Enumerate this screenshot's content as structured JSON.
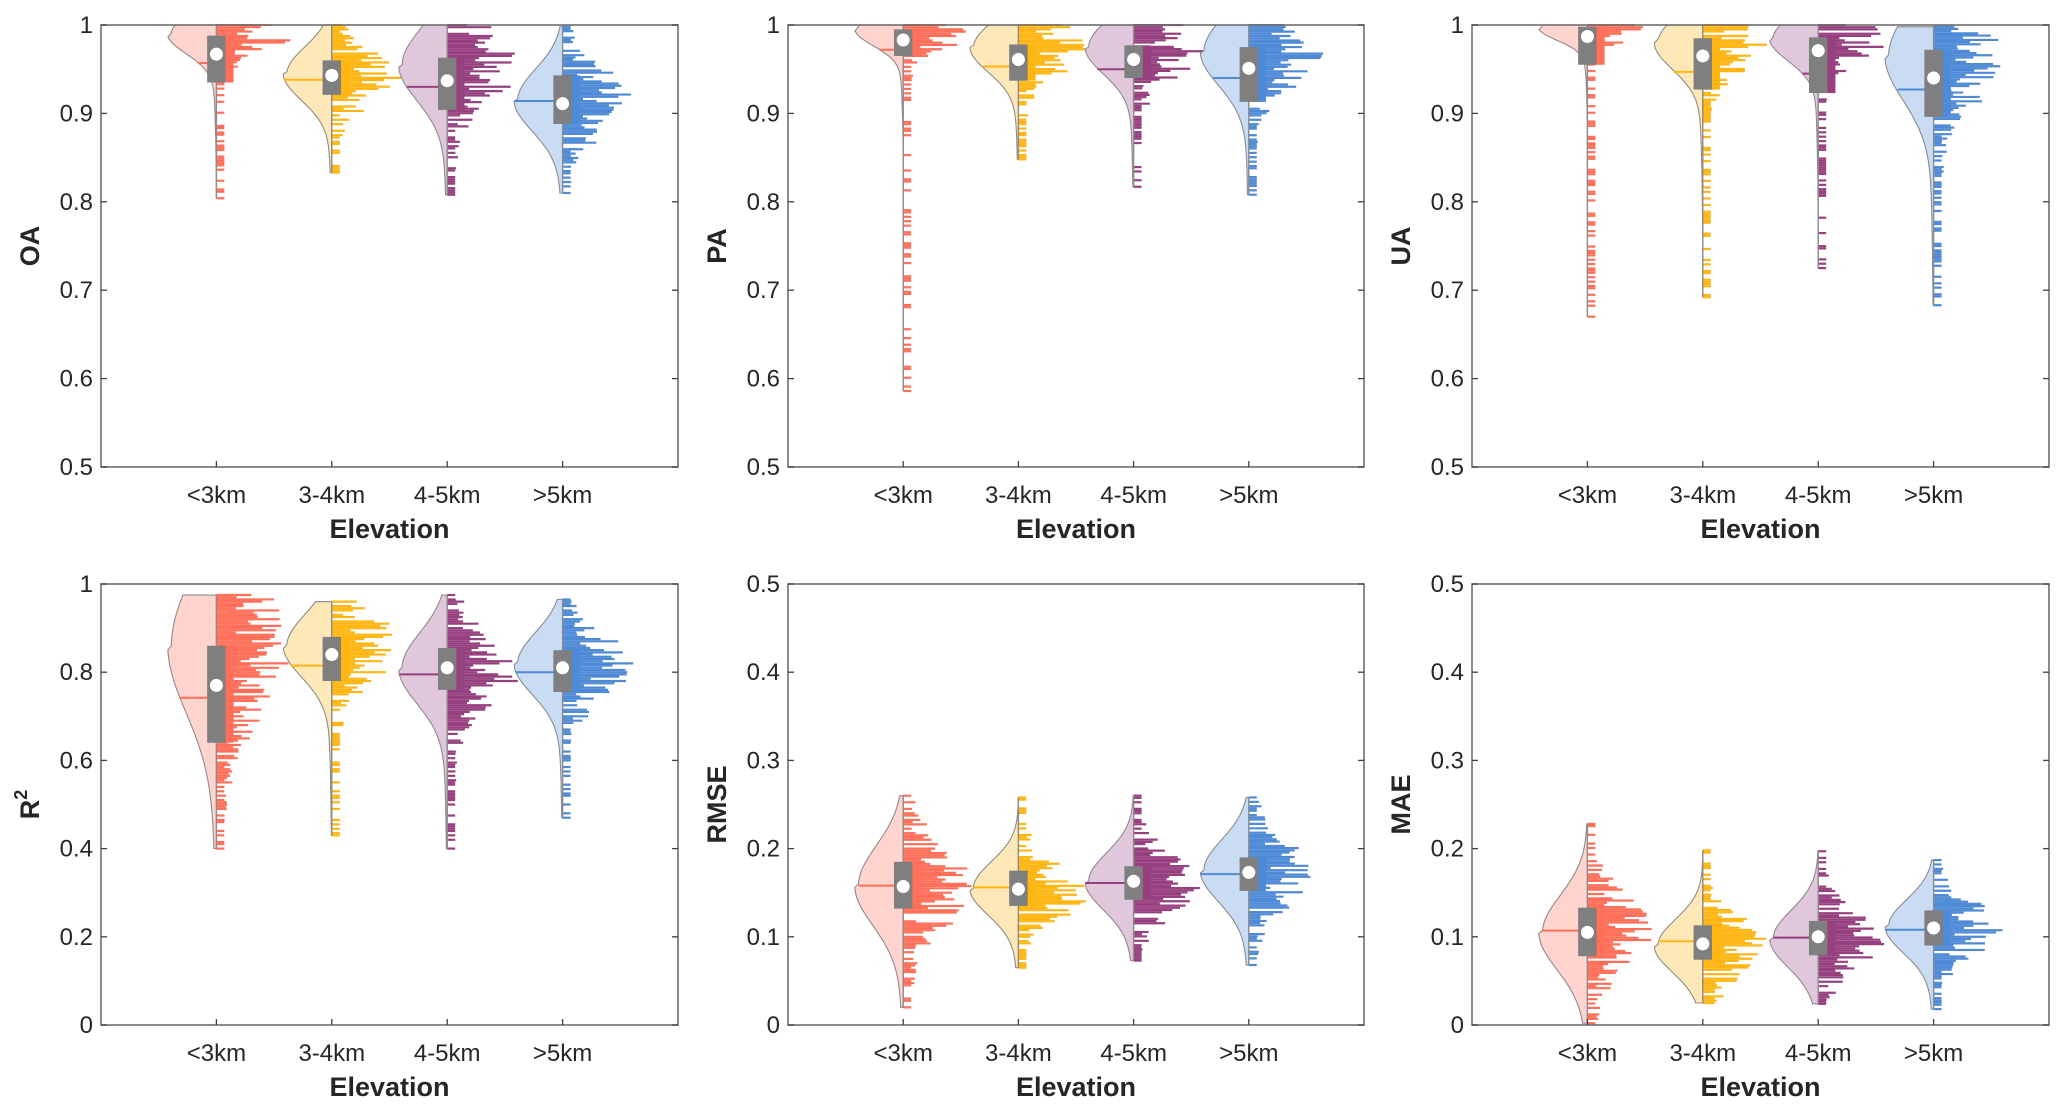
{
  "figure": {
    "x_title": "Elevation",
    "categories": [
      "<3km",
      "3-4km",
      "4-5km",
      ">5km"
    ],
    "colors": {
      "<3km": {
        "line": "#FF6F59",
        "fill": "#FFD3CE"
      },
      "3-4km": {
        "line": "#FFB612",
        "fill": "#FFE8B8"
      },
      "4-5km": {
        "line": "#974080",
        "fill": "#E1C7DC"
      },
      ">5km": {
        "line": "#4E8AD6",
        "fill": "#C9DCF4"
      }
    },
    "box_color": "#7F7F7F",
    "mean_marker_color": "#FFFFFF"
  },
  "chart_data": [
    {
      "type": "raincloud",
      "title": "",
      "ylabel": "OA",
      "xlabel": "Elevation",
      "ylim": [
        0.5,
        1
      ],
      "yticks": [
        "0.5",
        "0.6",
        "0.7",
        "0.8",
        "0.9",
        "1"
      ],
      "ytick_values": [
        0.5,
        0.6,
        0.7,
        0.8,
        0.9,
        1.0
      ],
      "categories": [
        "<3km",
        "3-4km",
        "4-5km",
        ">5km"
      ],
      "series": [
        {
          "name": "<3km",
          "min": 0.804,
          "max": 1.0,
          "q1": 0.935,
          "q3": 0.988,
          "median": 0.957,
          "mean": 0.967,
          "mode": 0.99,
          "spread": 0.022
        },
        {
          "name": "3-4km",
          "min": 0.833,
          "max": 1.0,
          "q1": 0.921,
          "q3": 0.96,
          "median": 0.938,
          "mean": 0.943,
          "mode": 0.945,
          "spread": 0.03
        },
        {
          "name": "4-5km",
          "min": 0.808,
          "max": 1.0,
          "q1": 0.904,
          "q3": 0.963,
          "median": 0.93,
          "mean": 0.937,
          "mode": 0.955,
          "spread": 0.04
        },
        {
          "name": ">5km",
          "min": 0.81,
          "max": 0.998,
          "q1": 0.888,
          "q3": 0.943,
          "median": 0.914,
          "mean": 0.911,
          "mode": 0.915,
          "spread": 0.035
        }
      ]
    },
    {
      "type": "raincloud",
      "title": "",
      "ylabel": "PA",
      "xlabel": "Elevation",
      "ylim": [
        0.5,
        1
      ],
      "yticks": [
        "0.5",
        "0.6",
        "0.7",
        "0.8",
        "0.9",
        "1"
      ],
      "ytick_values": [
        0.5,
        0.6,
        0.7,
        0.8,
        0.9,
        1.0
      ],
      "categories": [
        "<3km",
        "3-4km",
        "4-5km",
        ">5km"
      ],
      "series": [
        {
          "name": "<3km",
          "min": 0.586,
          "max": 1.0,
          "q1": 0.965,
          "q3": 0.995,
          "median": 0.972,
          "mean": 0.983,
          "mode": 0.995,
          "spread": 0.018
        },
        {
          "name": "3-4km",
          "min": 0.848,
          "max": 1.0,
          "q1": 0.937,
          "q3": 0.978,
          "median": 0.953,
          "mean": 0.961,
          "mode": 0.975,
          "spread": 0.028
        },
        {
          "name": "4-5km",
          "min": 0.817,
          "max": 1.0,
          "q1": 0.94,
          "q3": 0.977,
          "median": 0.95,
          "mean": 0.961,
          "mode": 0.975,
          "spread": 0.03
        },
        {
          "name": ">5km",
          "min": 0.808,
          "max": 1.0,
          "q1": 0.913,
          "q3": 0.975,
          "median": 0.94,
          "mean": 0.951,
          "mode": 0.97,
          "spread": 0.038
        }
      ]
    },
    {
      "type": "raincloud",
      "title": "",
      "ylabel": "UA",
      "xlabel": "Elevation",
      "ylim": [
        0.5,
        1
      ],
      "yticks": [
        "0.5",
        "0.6",
        "0.7",
        "0.8",
        "0.9",
        "1"
      ],
      "ytick_values": [
        0.5,
        0.6,
        0.7,
        0.8,
        0.9,
        1.0
      ],
      "categories": [
        "<3km",
        "3-4km",
        "4-5km",
        ">5km"
      ],
      "series": [
        {
          "name": "<3km",
          "min": 0.67,
          "max": 1.0,
          "q1": 0.955,
          "q3": 0.998,
          "median": 0.968,
          "mean": 0.987,
          "mode": 0.997,
          "spread": 0.014
        },
        {
          "name": "3-4km",
          "min": 0.692,
          "max": 1.0,
          "q1": 0.927,
          "q3": 0.985,
          "median": 0.947,
          "mean": 0.965,
          "mode": 0.98,
          "spread": 0.03
        },
        {
          "name": "4-5km",
          "min": 0.725,
          "max": 1.0,
          "q1": 0.923,
          "q3": 0.986,
          "median": 0.945,
          "mean": 0.971,
          "mode": 0.985,
          "spread": 0.025
        },
        {
          "name": ">5km",
          "min": 0.683,
          "max": 0.998,
          "q1": 0.896,
          "q3": 0.972,
          "median": 0.927,
          "mean": 0.94,
          "mode": 0.965,
          "spread": 0.05
        }
      ]
    },
    {
      "type": "raincloud",
      "title": "",
      "ylabel": "R2",
      "ylabel_base": "R",
      "ylabel_sup": "2",
      "xlabel": "Elevation",
      "ylim": [
        0,
        1
      ],
      "yticks": [
        "0",
        "0.2",
        "0.4",
        "0.6",
        "0.8",
        "1"
      ],
      "ytick_values": [
        0,
        0.2,
        0.4,
        0.6,
        0.8,
        1.0
      ],
      "categories": [
        "<3km",
        "3-4km",
        "4-5km",
        ">5km"
      ],
      "series": [
        {
          "name": "<3km",
          "min": 0.4,
          "max": 0.975,
          "q1": 0.64,
          "q3": 0.86,
          "median": 0.742,
          "mean": 0.77,
          "mode": 0.86,
          "spread": 0.15
        },
        {
          "name": "3-4km",
          "min": 0.43,
          "max": 0.96,
          "q1": 0.78,
          "q3": 0.88,
          "median": 0.815,
          "mean": 0.84,
          "mode": 0.86,
          "spread": 0.07
        },
        {
          "name": "4-5km",
          "min": 0.4,
          "max": 0.975,
          "q1": 0.76,
          "q3": 0.855,
          "median": 0.795,
          "mean": 0.81,
          "mode": 0.81,
          "spread": 0.08
        },
        {
          "name": ">5km",
          "min": 0.47,
          "max": 0.965,
          "q1": 0.755,
          "q3": 0.85,
          "median": 0.8,
          "mean": 0.81,
          "mode": 0.82,
          "spread": 0.07
        }
      ]
    },
    {
      "type": "raincloud",
      "title": "",
      "ylabel": "RMSE",
      "xlabel": "Elevation",
      "ylim": [
        0,
        0.5
      ],
      "yticks": [
        "0",
        "0.1",
        "0.2",
        "0.3",
        "0.4",
        "0.5"
      ],
      "ytick_values": [
        0,
        0.1,
        0.2,
        0.3,
        0.4,
        0.5
      ],
      "categories": [
        "<3km",
        "3-4km",
        "4-5km",
        ">5km"
      ],
      "series": [
        {
          "name": "<3km",
          "min": 0.02,
          "max": 0.26,
          "q1": 0.132,
          "q3": 0.185,
          "median": 0.158,
          "mean": 0.157,
          "mode": 0.158,
          "spread": 0.045
        },
        {
          "name": "3-4km",
          "min": 0.065,
          "max": 0.258,
          "q1": 0.135,
          "q3": 0.175,
          "median": 0.156,
          "mean": 0.154,
          "mode": 0.155,
          "spread": 0.03
        },
        {
          "name": "4-5km",
          "min": 0.073,
          "max": 0.26,
          "q1": 0.142,
          "q3": 0.18,
          "median": 0.161,
          "mean": 0.163,
          "mode": 0.163,
          "spread": 0.032
        },
        {
          "name": ">5km",
          "min": 0.068,
          "max": 0.258,
          "q1": 0.152,
          "q3": 0.19,
          "median": 0.171,
          "mean": 0.173,
          "mode": 0.175,
          "spread": 0.035
        }
      ]
    },
    {
      "type": "raincloud",
      "title": "",
      "ylabel": "MAE",
      "xlabel": "Elevation",
      "ylim": [
        0,
        0.5
      ],
      "yticks": [
        "0",
        "0.1",
        "0.2",
        "0.3",
        "0.4",
        "0.5"
      ],
      "ytick_values": [
        0,
        0.1,
        0.2,
        0.3,
        0.4,
        0.5
      ],
      "categories": [
        "<3km",
        "3-4km",
        "4-5km",
        ">5km"
      ],
      "series": [
        {
          "name": "<3km",
          "min": 0.002,
          "max": 0.228,
          "q1": 0.078,
          "q3": 0.133,
          "median": 0.107,
          "mean": 0.105,
          "mode": 0.105,
          "spread": 0.042
        },
        {
          "name": "3-4km",
          "min": 0.025,
          "max": 0.198,
          "q1": 0.074,
          "q3": 0.113,
          "median": 0.095,
          "mean": 0.092,
          "mode": 0.09,
          "spread": 0.03
        },
        {
          "name": "4-5km",
          "min": 0.024,
          "max": 0.197,
          "q1": 0.079,
          "q3": 0.118,
          "median": 0.099,
          "mean": 0.1,
          "mode": 0.098,
          "spread": 0.032
        },
        {
          "name": ">5km",
          "min": 0.018,
          "max": 0.187,
          "q1": 0.09,
          "q3": 0.13,
          "median": 0.108,
          "mean": 0.11,
          "mode": 0.112,
          "spread": 0.03
        }
      ]
    }
  ]
}
